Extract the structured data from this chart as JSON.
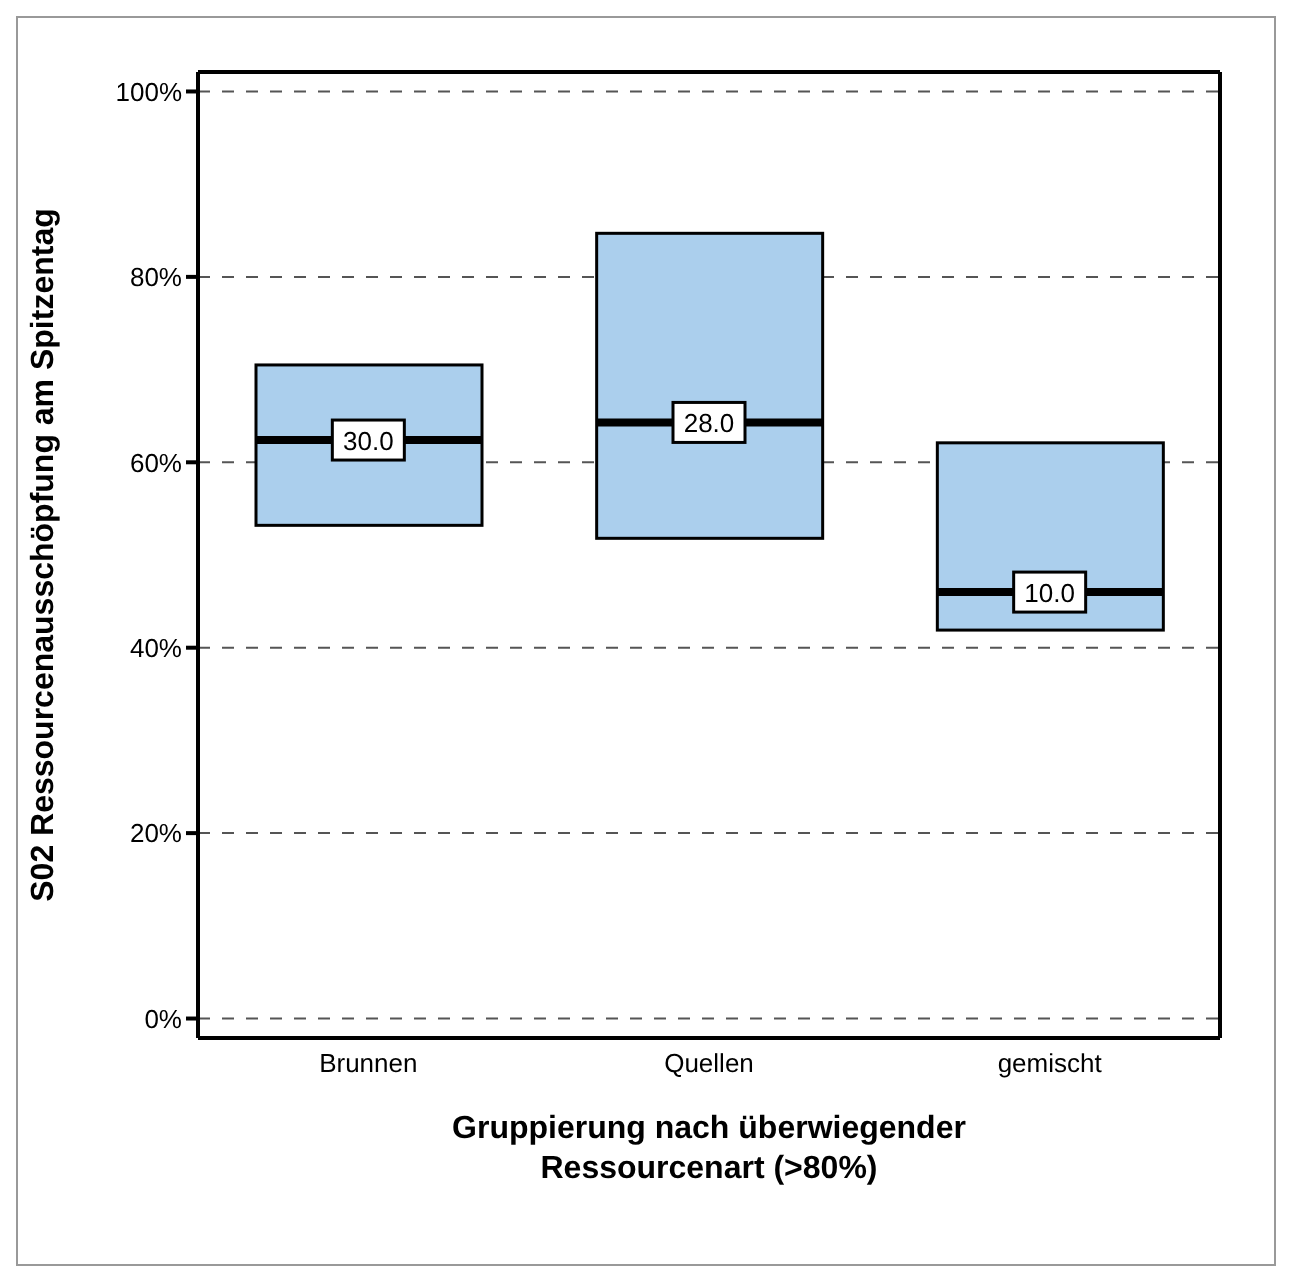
{
  "chart_data": {
    "type": "box",
    "xlabel": "Gruppierung nach überwiegender Ressourcenart (>80%)",
    "ylabel": "S02 Ressourcenausschöpfung am Spitzentag",
    "categories": [
      "Brunnen",
      "Quellen",
      "gemischt"
    ],
    "boxes": [
      {
        "low": 53.2,
        "q1": 53.2,
        "median": 62.4,
        "q3": 70.5,
        "high": 70.5
      },
      {
        "low": 51.8,
        "q1": 51.8,
        "median": 64.3,
        "q3": 84.7,
        "high": 84.7
      },
      {
        "low": 41.9,
        "q1": 41.9,
        "median": 46.0,
        "q3": 62.1,
        "high": 62.1
      }
    ],
    "color": "#abcfed",
    "ylim": [
      -2.1,
      102.1
    ],
    "yticks": [
      {
        "value": 0,
        "label": "0%"
      },
      {
        "value": 20,
        "label": "20%"
      },
      {
        "value": 40,
        "label": "40%"
      },
      {
        "value": 60,
        "label": "60%"
      },
      {
        "value": 80,
        "label": "80%"
      },
      {
        "value": 100,
        "label": "100%"
      }
    ],
    "grid": "y",
    "annotations": [
      {
        "text": "30.0",
        "x": "Brunnen",
        "y": 62.4
      },
      {
        "text": "28.0",
        "x": "Quellen",
        "y": 64.3
      },
      {
        "text": "10.0",
        "x": "gemischt",
        "y": 46.0
      }
    ]
  }
}
